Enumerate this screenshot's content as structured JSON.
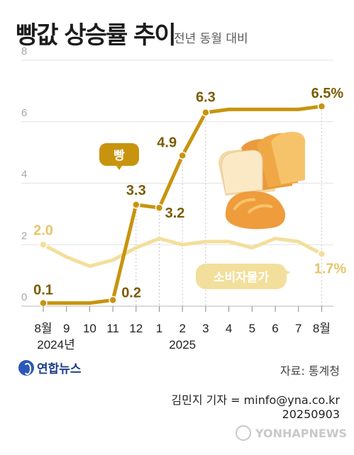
{
  "title": "빵값 상승률 추이",
  "subtitle": "전년 동월 대비",
  "source": "자료: 통계청",
  "agency": "연합뉴스",
  "credit": "김민지 기자 = minfo@yna.co.kr",
  "date_code": "20250903",
  "watermark": "YONHAPNEWS",
  "colors": {
    "bread": "#c8940f",
    "cpi": "#f3df9c",
    "grid": "#e2e2e2",
    "label_dark": "#7a5c00"
  },
  "chart_data": {
    "type": "line",
    "title": "빵값 상승률 추이",
    "subtitle": "전년 동월 대비",
    "categories": [
      "8월",
      "9",
      "10",
      "11",
      "12",
      "1",
      "2",
      "3",
      "4",
      "5",
      "6",
      "7",
      "8월"
    ],
    "year_labels": [
      "2024년",
      "2025"
    ],
    "ylim": [
      0,
      8
    ],
    "yticks": [
      "0",
      "2",
      "4",
      "6",
      "8"
    ],
    "grid": true,
    "series": [
      {
        "name": "빵",
        "values": [
          0.1,
          0.1,
          0.1,
          0.2,
          3.3,
          3.2,
          4.9,
          6.3,
          6.4,
          6.4,
          6.4,
          6.4,
          6.5
        ],
        "labels": [
          "0.1",
          "",
          "",
          "0.2",
          "3.3",
          "3.2",
          "4.9",
          "6.3",
          "",
          "",
          "",
          "",
          "6.5%"
        ]
      },
      {
        "name": "소비자물가",
        "values": [
          2.0,
          1.6,
          1.3,
          1.5,
          1.9,
          2.2,
          2.0,
          2.1,
          2.1,
          1.9,
          2.2,
          2.1,
          1.7
        ],
        "labels": [
          "2.0",
          "",
          "",
          "",
          "",
          "",
          "",
          "",
          "",
          "",
          "",
          "",
          "1.7%"
        ]
      }
    ]
  }
}
